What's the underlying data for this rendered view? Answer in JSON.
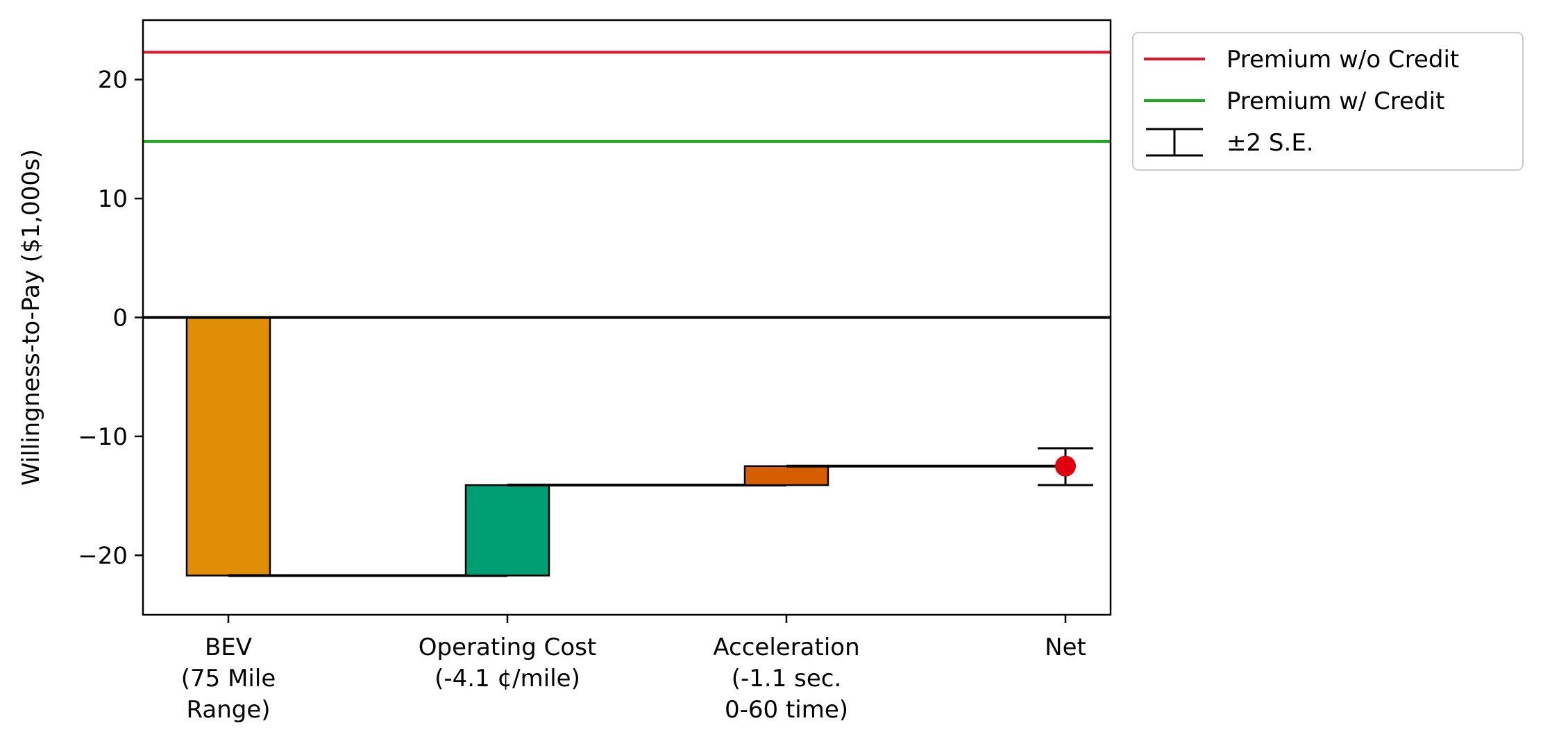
{
  "chart_data": {
    "type": "bar",
    "ylabel": "Willingness-to-Pay ($1,000s)",
    "ylim": [
      -25,
      25
    ],
    "yticks": [
      -20,
      -10,
      0,
      10,
      20
    ],
    "grid": false,
    "categories": [
      [
        "BEV",
        "(75 Mile",
        "Range)"
      ],
      [
        "Operating Cost",
        "(-4.1 ¢/mile)"
      ],
      [
        "Acceleration",
        "(-1.1 sec.",
        "0-60 time)"
      ],
      [
        "Net"
      ]
    ],
    "bars": [
      {
        "category": "BEV",
        "start": 0,
        "end": -21.7,
        "color": "#E08E05"
      },
      {
        "category": "Operating Cost",
        "start": -21.7,
        "end": -14.1,
        "color": "#009E73"
      },
      {
        "category": "Acceleration",
        "start": -14.1,
        "end": -12.5,
        "color": "#D55E00"
      }
    ],
    "net": {
      "value": -12.5,
      "lower": -14.1,
      "upper": -11.0,
      "color": "#E0000D"
    },
    "reference_lines": [
      {
        "name": "Premium w/o Credit",
        "y": 22.3,
        "color": "#E8102A"
      },
      {
        "name": "Premium w/ Credit",
        "y": 14.8,
        "color": "#1AAA1A"
      }
    ],
    "zero_line": 0,
    "legend": {
      "placement": "outside-top-right",
      "entries": [
        {
          "label": "Premium w/o Credit",
          "kind": "line",
          "color": "#E8102A"
        },
        {
          "label": "Premium w/ Credit",
          "kind": "line",
          "color": "#1AAA1A"
        },
        {
          "label": "±2 S.E.",
          "kind": "errorbar",
          "color": "#000000"
        }
      ]
    }
  }
}
